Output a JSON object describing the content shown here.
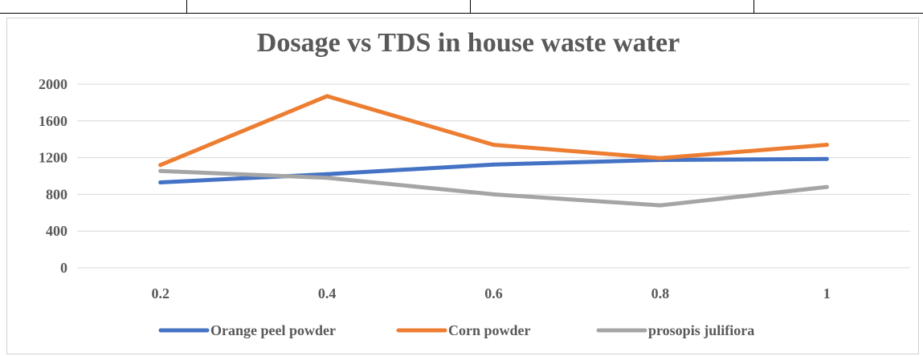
{
  "chart_data": {
    "type": "line",
    "title": "Dosage vs TDS in house waste water",
    "xlabel": "",
    "ylabel": "",
    "categories": [
      "0.2",
      "0.4",
      "0.6",
      "0.8",
      "1"
    ],
    "ylim": [
      0,
      2000
    ],
    "yticks": [
      "0",
      "400",
      "800",
      "1200",
      "1600",
      "2000"
    ],
    "grid": true,
    "legend_position": "bottom",
    "series": [
      {
        "name": "Orange peel powder",
        "color": "#4472C4",
        "values": [
          930,
          1020,
          1125,
          1175,
          1185
        ]
      },
      {
        "name": "Corn powder",
        "color": "#ED7D31",
        "values": [
          1120,
          1870,
          1340,
          1195,
          1340
        ]
      },
      {
        "name": "prosopis julifiora",
        "color": "#A5A5A5",
        "values": [
          1055,
          980,
          800,
          680,
          880
        ]
      }
    ]
  }
}
